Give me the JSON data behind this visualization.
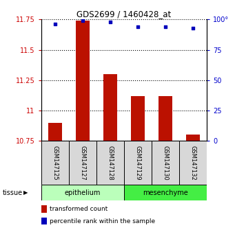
{
  "title": "GDS2699 / 1460428_at",
  "samples": [
    "GSM147125",
    "GSM147127",
    "GSM147128",
    "GSM147129",
    "GSM147130",
    "GSM147132"
  ],
  "bar_values": [
    10.9,
    11.74,
    11.3,
    11.12,
    11.12,
    10.8
  ],
  "percentile_values": [
    96,
    99,
    98,
    94,
    94,
    93
  ],
  "bar_bottom": 10.75,
  "ylim_left": [
    10.75,
    11.75
  ],
  "ylim_right": [
    0,
    100
  ],
  "yticks_left": [
    10.75,
    11.0,
    11.25,
    11.5,
    11.75
  ],
  "ytick_labels_left": [
    "10.75",
    "11",
    "11.25",
    "11.5",
    "11.75"
  ],
  "yticks_right": [
    0,
    25,
    50,
    75,
    100
  ],
  "ytick_labels_right": [
    "0",
    "25",
    "50",
    "75",
    "100°"
  ],
  "bar_color": "#bb1100",
  "dot_color": "#0000bb",
  "tissue_groups": [
    {
      "label": "epithelium",
      "start": 0,
      "end": 3,
      "color": "#bbffbb"
    },
    {
      "label": "mesenchyme",
      "start": 3,
      "end": 6,
      "color": "#44ee44"
    }
  ],
  "tissue_label": "tissue",
  "legend_bar_label": "transformed count",
  "legend_dot_label": "percentile rank within the sample",
  "tick_label_left_color": "#cc0000",
  "tick_label_right_color": "#0000cc",
  "cell_bg_color": "#d8d8d8",
  "cell_border_color": "#000000"
}
